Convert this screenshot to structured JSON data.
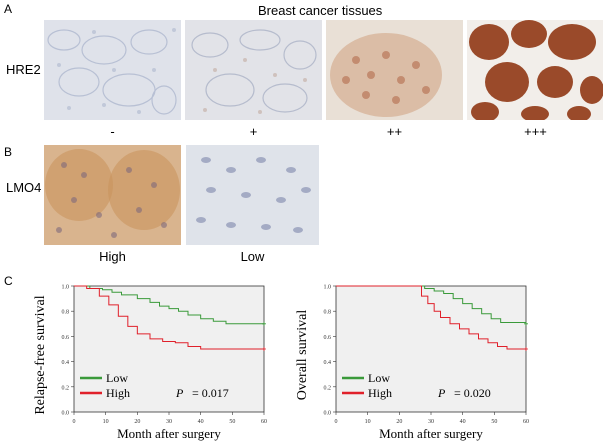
{
  "figure": {
    "panel_a": {
      "label": "A",
      "title": "Breast cancer tissues",
      "row_label": "HRE2",
      "captions": [
        "-",
        "+",
        "++",
        "+++"
      ]
    },
    "panel_b": {
      "label": "B",
      "row_label": "LMO4",
      "captions": [
        "High",
        "Low"
      ]
    },
    "panel_c": {
      "label": "C"
    },
    "colors": {
      "high": "#e0202a",
      "low": "#3a9a3a",
      "plot_bg": "#f0f0f0",
      "stain_blue": "#aab4cc",
      "stain_brown": "#9a4a2a"
    }
  },
  "chart_data": [
    {
      "type": "line",
      "ylabel": "Relapse-free survival",
      "xlabel": "Month after surgery",
      "xlim": [
        0,
        60
      ],
      "ylim": [
        0,
        1.0
      ],
      "xticks": [
        "0",
        "10",
        "20",
        "30",
        "40",
        "50",
        "60"
      ],
      "yticks": [
        "0.0",
        "0.2",
        "0.4",
        "0.6",
        "0.8",
        "1.0"
      ],
      "legend": [
        "Low",
        "High"
      ],
      "legend_position": "bottom-left",
      "p_label": "P",
      "p_value": "= 0.017",
      "series": [
        {
          "name": "Low",
          "color": "#3a9a3a",
          "x": [
            0,
            5,
            9,
            12,
            15,
            20,
            24,
            27,
            30,
            33,
            36,
            40,
            44,
            48,
            60
          ],
          "y": [
            1.0,
            0.98,
            0.97,
            0.95,
            0.93,
            0.9,
            0.87,
            0.84,
            0.82,
            0.8,
            0.77,
            0.74,
            0.72,
            0.7,
            0.7
          ]
        },
        {
          "name": "High",
          "color": "#e0202a",
          "x": [
            0,
            4,
            8,
            11,
            14,
            17,
            20,
            24,
            28,
            32,
            36,
            40,
            60
          ],
          "y": [
            1.0,
            0.98,
            0.92,
            0.85,
            0.76,
            0.68,
            0.62,
            0.58,
            0.56,
            0.55,
            0.52,
            0.5,
            0.5
          ]
        }
      ]
    },
    {
      "type": "line",
      "ylabel": "Overall survival",
      "xlabel": "Month after surgery",
      "xlim": [
        0,
        60
      ],
      "ylim": [
        0,
        1.0
      ],
      "xticks": [
        "0",
        "10",
        "20",
        "30",
        "40",
        "50",
        "60"
      ],
      "yticks": [
        "0.0",
        "0.2",
        "0.4",
        "0.6",
        "0.8",
        "1.0"
      ],
      "legend": [
        "Low",
        "High"
      ],
      "legend_position": "bottom-left",
      "p_label": "P",
      "p_value": "= 0.020",
      "series": [
        {
          "name": "Low",
          "color": "#3a9a3a",
          "x": [
            0,
            20,
            28,
            31,
            34,
            37,
            40,
            43,
            46,
            49,
            52,
            60
          ],
          "y": [
            1.0,
            1.0,
            0.98,
            0.96,
            0.94,
            0.9,
            0.86,
            0.82,
            0.78,
            0.74,
            0.71,
            0.7
          ]
        },
        {
          "name": "High",
          "color": "#e0202a",
          "x": [
            0,
            24,
            27,
            29,
            31,
            33,
            36,
            39,
            42,
            45,
            48,
            51,
            54,
            60
          ],
          "y": [
            1.0,
            1.0,
            0.92,
            0.86,
            0.8,
            0.75,
            0.7,
            0.66,
            0.62,
            0.58,
            0.55,
            0.52,
            0.5,
            0.5
          ]
        }
      ]
    }
  ]
}
